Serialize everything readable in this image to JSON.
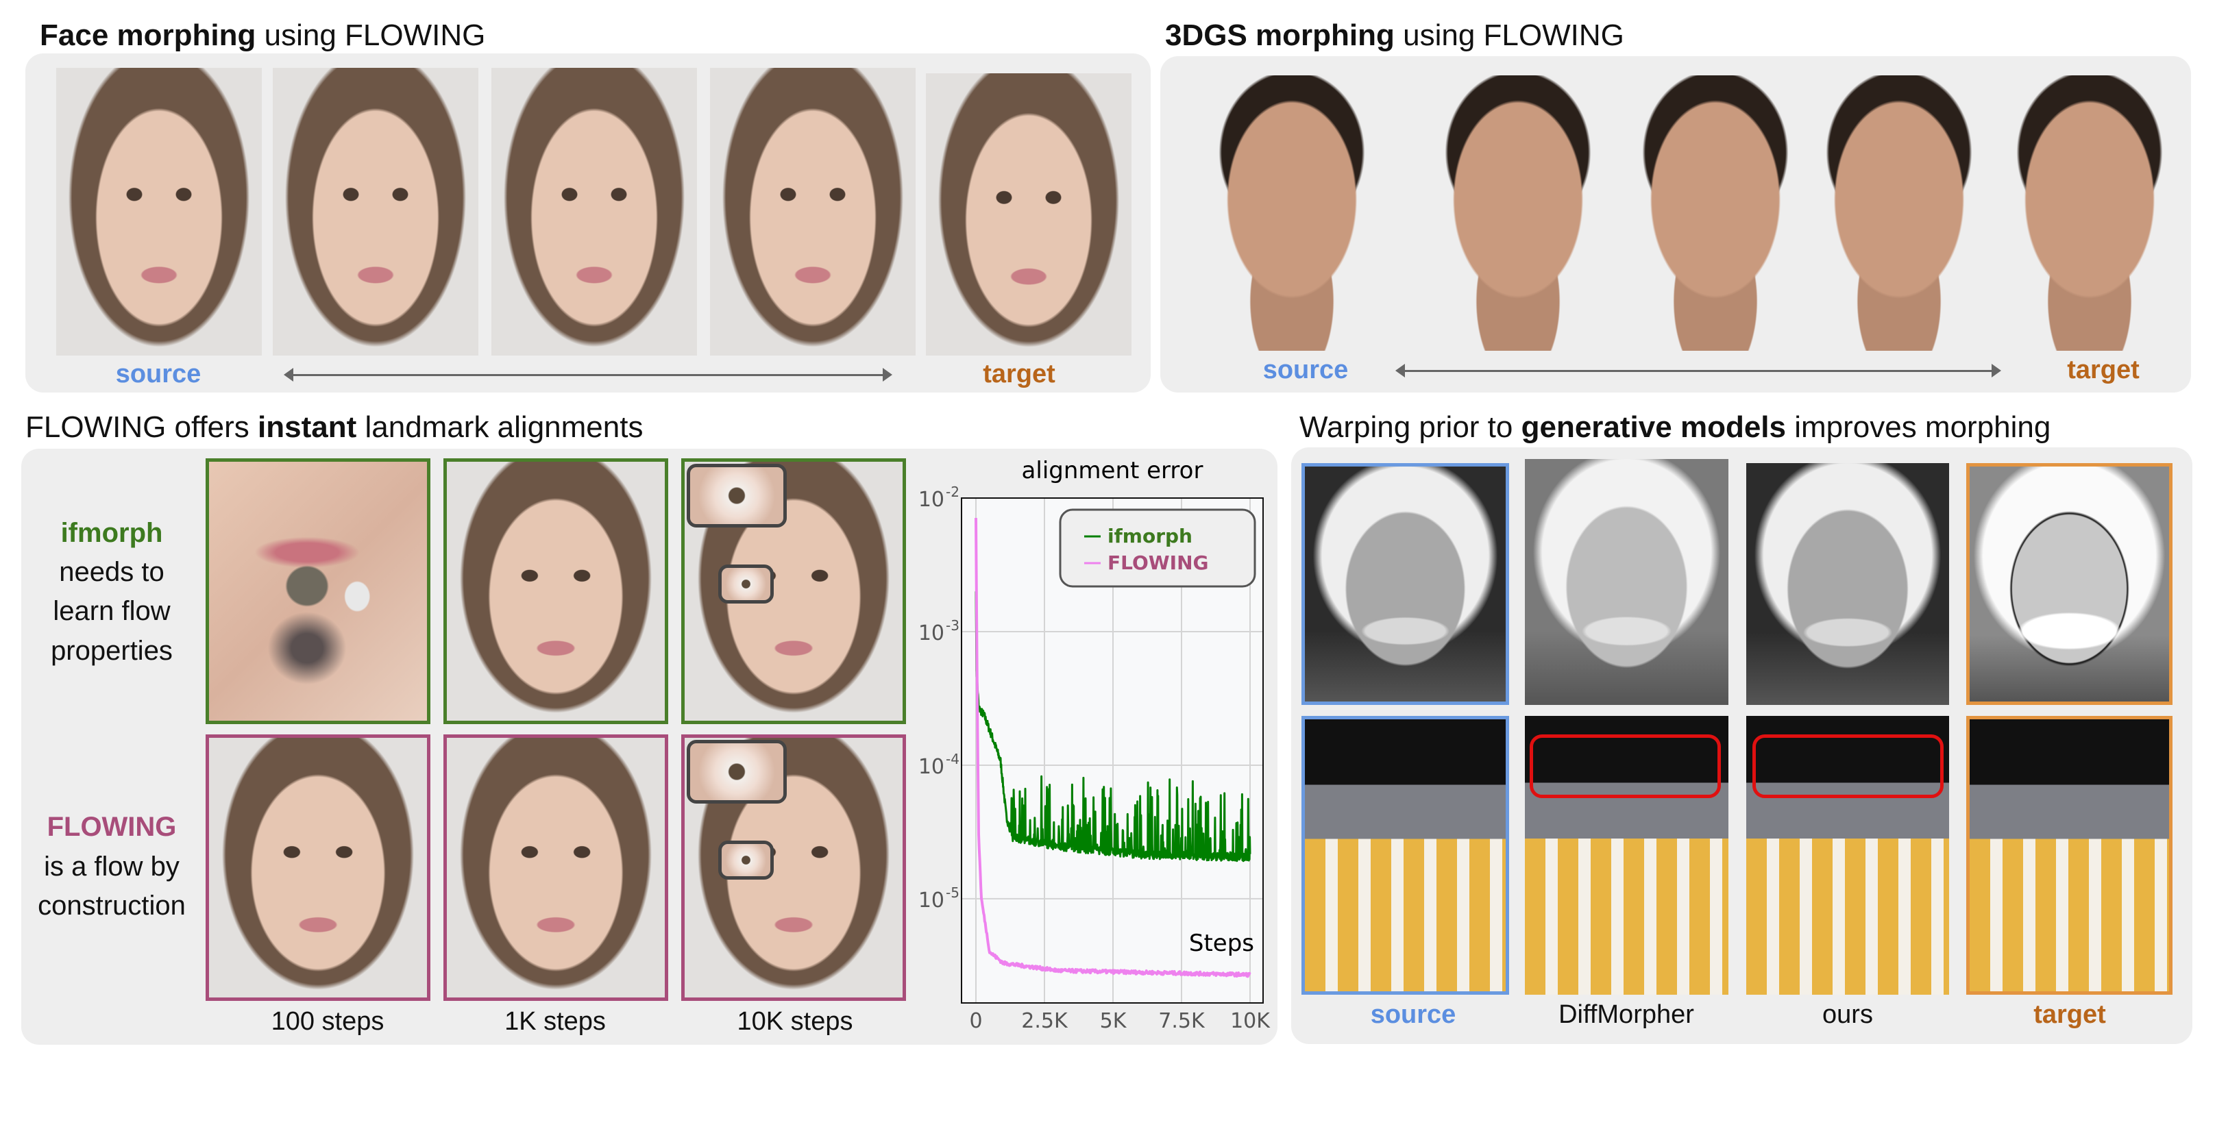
{
  "face_section": {
    "title_bold": "Face morphing",
    "title_rest": " using FLOWING",
    "source_label": "source",
    "target_label": "target"
  },
  "dgs_section": {
    "title_bold": "3DGS morphing",
    "title_rest": " using FLOWING",
    "source_label": "source",
    "target_label": "target"
  },
  "alignment_section": {
    "title_pre": "FLOWING offers ",
    "title_bold": "instant",
    "title_post": " landmark alignments",
    "ifmorph_name": "ifmorph",
    "ifmorph_lines": [
      "needs to",
      "learn flow",
      "properties"
    ],
    "flowing_name": "FLOWING",
    "flowing_lines": [
      "is a  flow by",
      "construction"
    ],
    "captions": [
      "100 steps",
      "1K steps",
      "10K steps"
    ]
  },
  "generative_section": {
    "title_pre": "Warping prior to ",
    "title_bold": "generative models",
    "title_post": " improves morphing",
    "labels": [
      "source",
      "DiffMorpher",
      "ours",
      "target"
    ]
  },
  "colors": {
    "ifmorph": "#3d7a1f",
    "flowing": "#a84d7a",
    "source": "#5b8ee0",
    "target": "#b8651a",
    "target_border": "#e39440",
    "ifmorph_line": "#007f00",
    "flowing_line": "#ee82ee"
  },
  "chart_data": {
    "type": "line",
    "title": "alignment error",
    "xlabel": "Steps",
    "ylabel": "",
    "yscale": "log",
    "xlim": [
      -525,
      10475
    ],
    "ylim": [
      1.66e-06,
      0.01
    ],
    "grid": true,
    "legend_placement": "top-right",
    "xticks": [
      0,
      2500,
      5000,
      7500,
      10000
    ],
    "xtick_labels": [
      "0",
      "2.5K",
      "5K",
      "7.5K",
      "10K"
    ],
    "yticks": [
      0.01,
      0.001,
      0.0001,
      1e-05
    ],
    "ytick_labels": [
      {
        "base": "10",
        "exp": "-2"
      },
      {
        "base": "10",
        "exp": "-3"
      },
      {
        "base": "10",
        "exp": "-4"
      },
      {
        "base": "10",
        "exp": "-5"
      }
    ],
    "series": [
      {
        "name": "ifmorph",
        "color": "#007f00",
        "x": [
          0,
          20,
          100,
          300,
          600,
          900,
          1100,
          1300,
          3000,
          6000,
          10000
        ],
        "y": [
          0.002,
          0.0005,
          0.00025,
          0.00022,
          0.00015,
          0.0001,
          4e-05,
          2.7e-05,
          2.3e-05,
          2e-05,
          1.9e-05
        ],
        "spike_max": 9e-05
      },
      {
        "name": "FLOWING",
        "color": "#ee82ee",
        "x": [
          0,
          50,
          100,
          200,
          500,
          1000,
          3000,
          10000
        ],
        "y": [
          0.007,
          0.0003,
          3e-05,
          1e-05,
          4e-06,
          3.3e-06,
          2.9e-06,
          2.7e-06
        ]
      }
    ]
  }
}
